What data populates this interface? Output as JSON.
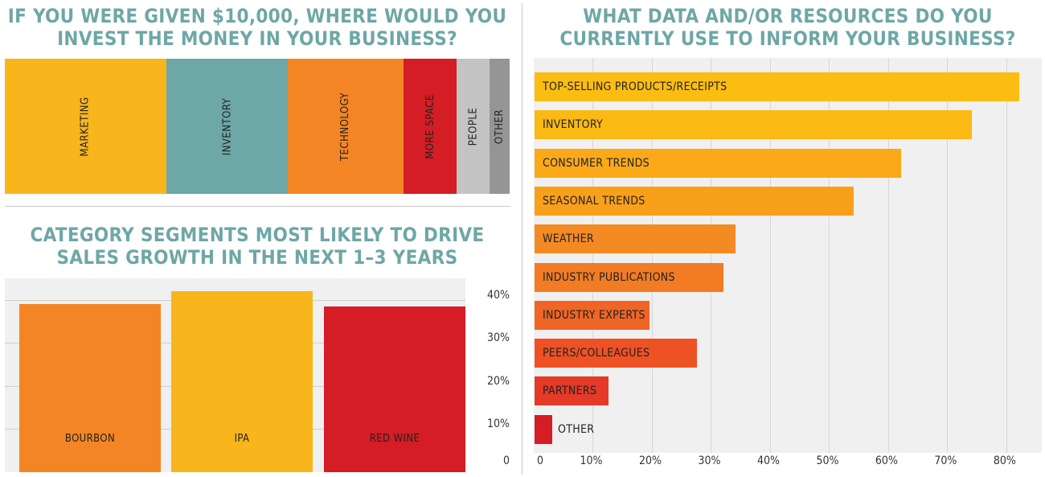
{
  "titles": {
    "invest": [
      "IF YOU WERE GIVEN $10,000, WHERE WOULD YOU",
      "INVEST THE MONEY IN YOUR BUSINESS?"
    ],
    "data": [
      "WHAT DATA AND/OR RESOURCES DO YOU",
      "CURRENTLY USE TO INFORM YOUR BUSINESS?"
    ],
    "segments": [
      "CATEGORY SEGMENTS MOST LIKELY TO DRIVE",
      "SALES GROWTH IN THE NEXT 1–3 YEARS"
    ]
  },
  "chart_data": [
    {
      "id": "invest",
      "type": "bar",
      "stacked": true,
      "orientation": "horizontal-100%",
      "categories": [
        "MARKETING",
        "INVENTORY",
        "TECHNOLOGY",
        "MORE SPACE",
        "PEOPLE",
        "OTHER"
      ],
      "values": [
        32,
        24,
        23,
        10.5,
        6.5,
        4
      ],
      "colors": [
        "#f9b51c",
        "#6da7a6",
        "#f48524",
        "#d51d25",
        "#c3c3c3",
        "#959595"
      ],
      "title": "IF YOU WERE GIVEN $10,000, WHERE WOULD YOU INVEST THE MONEY IN YOUR BUSINESS?"
    },
    {
      "id": "segments",
      "type": "bar",
      "categories": [
        "BOURBON",
        "IPA",
        "RED WINE"
      ],
      "values": [
        39,
        42,
        38.5
      ],
      "colors": [
        "#f48524",
        "#f9b51c",
        "#d51d25"
      ],
      "yticks": [
        "0",
        "10%",
        "20%",
        "30%",
        "40%"
      ],
      "ylim": [
        0,
        45
      ],
      "title": "CATEGORY SEGMENTS MOST LIKELY TO DRIVE SALES GROWTH IN THE NEXT 1–3 YEARS"
    },
    {
      "id": "data",
      "type": "bar",
      "orientation": "horizontal",
      "categories": [
        "TOP-SELLING PRODUCTS/RECEIPTS",
        "INVENTORY",
        "CONSUMER TRENDS",
        "SEASONAL TRENDS",
        "WEATHER",
        "INDUSTRY PUBLICATIONS",
        "INDUSTRY EXPERTS",
        "PEERS/COLLEAGUES",
        "PARTNERS",
        "OTHER"
      ],
      "values": [
        82,
        74,
        62,
        54,
        34,
        32,
        19.5,
        27.5,
        12.5,
        3
      ],
      "colors": [
        "#fbbd12",
        "#fbb914",
        "#fba919",
        "#f9a01b",
        "#f48a22",
        "#f17c24",
        "#ef6526",
        "#ee5124",
        "#e53a27",
        "#d51d25"
      ],
      "xticks": [
        "0",
        "10%",
        "20%",
        "30%",
        "40%",
        "50%",
        "60%",
        "70%",
        "80%"
      ],
      "xlim": [
        0,
        86
      ],
      "title": "WHAT DATA AND/OR RESOURCES DO YOU CURRENTLY USE TO INFORM YOUR BUSINESS?"
    }
  ]
}
